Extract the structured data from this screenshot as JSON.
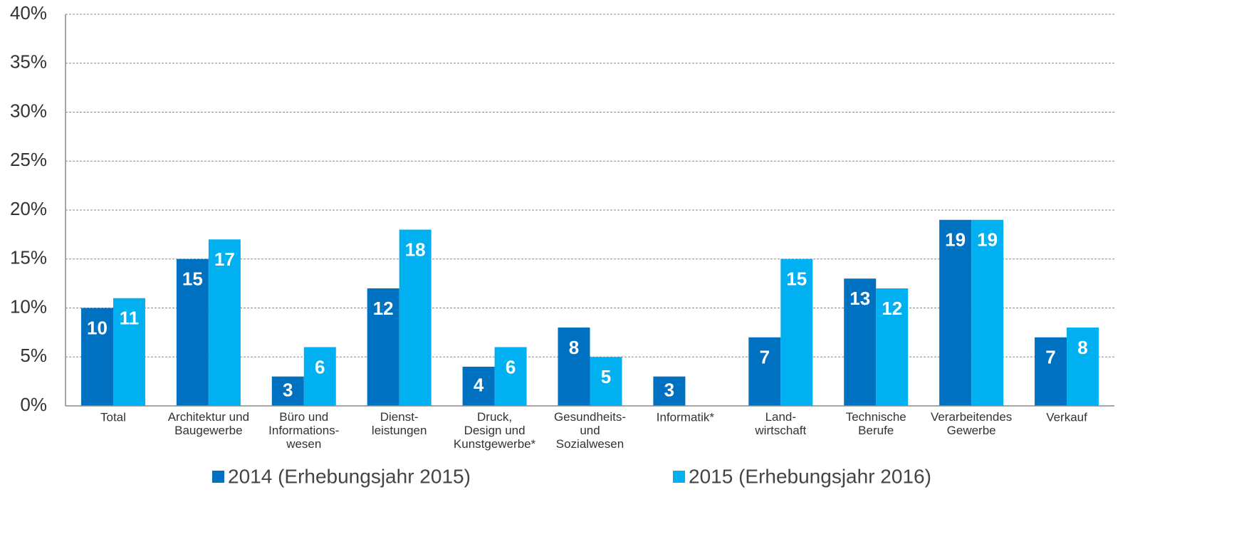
{
  "chart_data": {
    "type": "bar",
    "categories": [
      "Total",
      "Architektur und\nBaugewerbe",
      "Büro und\nInformations-\nwesen",
      "Dienst-\nleistungen",
      "Druck,\nDesign und\nKunstgewerbe*",
      "Gesundheits-\nund\nSozialwesen",
      "Informatik*",
      "Land-\nwirtschaft",
      "Technische\nBerufe",
      "Verarbeitendes\nGewerbe",
      "Verkauf"
    ],
    "series": [
      {
        "name": "2014 (Erhebungsjahr 2015)",
        "color": "#0070c0",
        "values": [
          10,
          15,
          3,
          12,
          4,
          8,
          3,
          7,
          13,
          19,
          7
        ]
      },
      {
        "name": "2015 (Erhebungsjahr 2016)",
        "color": "#00b0f0",
        "values": [
          11,
          17,
          6,
          18,
          6,
          5,
          null,
          15,
          12,
          19,
          8
        ]
      }
    ],
    "ylim": [
      0,
      40
    ],
    "yticks": [
      {
        "value": 0,
        "label": "0%"
      },
      {
        "value": 5,
        "label": "5%"
      },
      {
        "value": 10,
        "label": "10%"
      },
      {
        "value": 15,
        "label": "15%"
      },
      {
        "value": 20,
        "label": "20%"
      },
      {
        "value": 25,
        "label": "25%"
      },
      {
        "value": 30,
        "label": "30%"
      },
      {
        "value": 35,
        "label": "35%"
      },
      {
        "value": 40,
        "label": "40%"
      }
    ],
    "grid": true,
    "legend": "bottom"
  }
}
